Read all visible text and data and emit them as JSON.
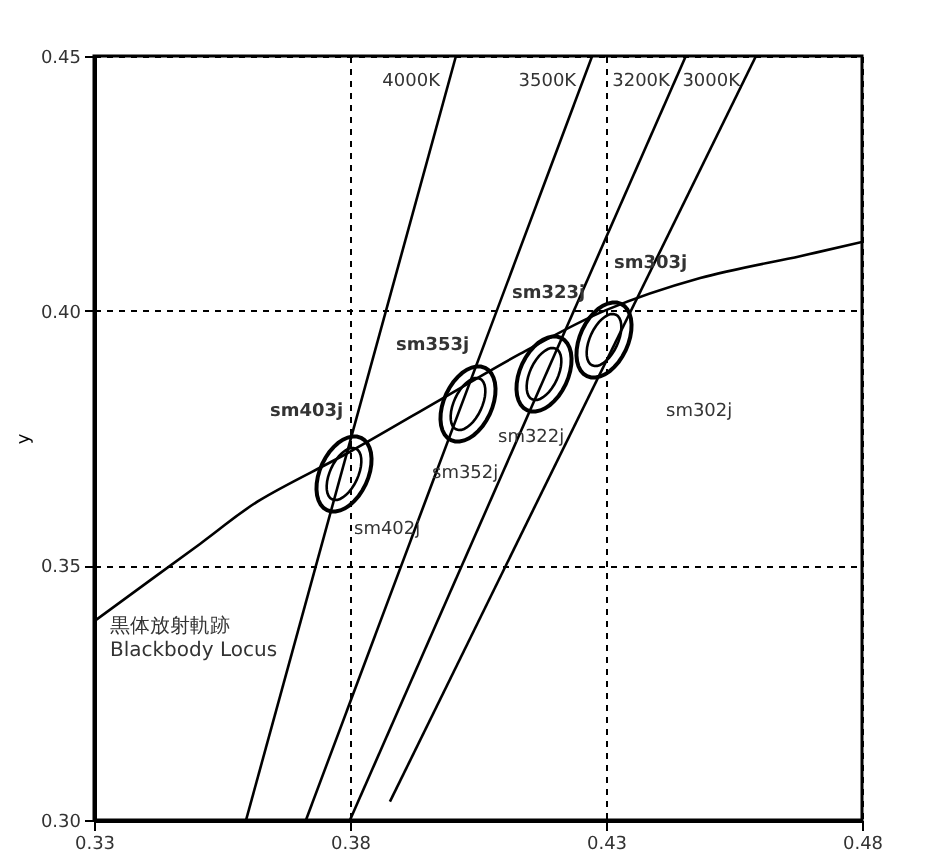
{
  "chart_data": {
    "type": "line",
    "ylabel": "y",
    "xlim": [
      0.33,
      0.48
    ],
    "ylim": [
      0.3,
      0.45
    ],
    "xticks": [
      0.33,
      0.38,
      0.43,
      0.48
    ],
    "yticks": [
      {
        "value": 0.3,
        "label": "0.30"
      },
      0.35,
      {
        "value": 0.4,
        "label": "0.40"
      },
      0.45
    ],
    "grid": true,
    "line_style": "solid",
    "marker": "none",
    "annotations": [
      "sm403j",
      "sm353j",
      "sm323j",
      "sm303j",
      "sm402j",
      "sm352j",
      "sm322j",
      "sm302j",
      "黒体放射軌跡\nBlackbody Locus"
    ],
    "series": [
      {
        "color": "#000000",
        "x": [
          0.33,
          0.3507,
          0.3624,
          0.38,
          0.3976,
          0.4132,
          0.43,
          0.4484,
          0.4679,
          0.48
        ],
        "values": [
          0.339,
          0.3542,
          0.3628,
          0.3723,
          0.3825,
          0.3915,
          0.4001,
          0.4064,
          0.4107,
          0.4135
        ]
      },
      {
        "name": "4000K",
        "color": "#000000",
        "x": [
          0.4007,
          0.3597
        ],
        "values": [
          0.45,
          0.3
        ]
      },
      {
        "name": "3500K",
        "color": "#000000",
        "x": [
          0.4273,
          0.3714
        ],
        "values": [
          0.45,
          0.3
        ]
      },
      {
        "name": "3200K",
        "color": "#000000",
        "x": [
          0.4456,
          0.38
        ],
        "values": [
          0.45,
          0.3
        ]
      },
      {
        "name": "3000K",
        "color": "#000000",
        "x": [
          0.4593,
          0.3878
        ],
        "values": [
          0.45,
          0.3036
        ]
      }
    ]
  }
}
